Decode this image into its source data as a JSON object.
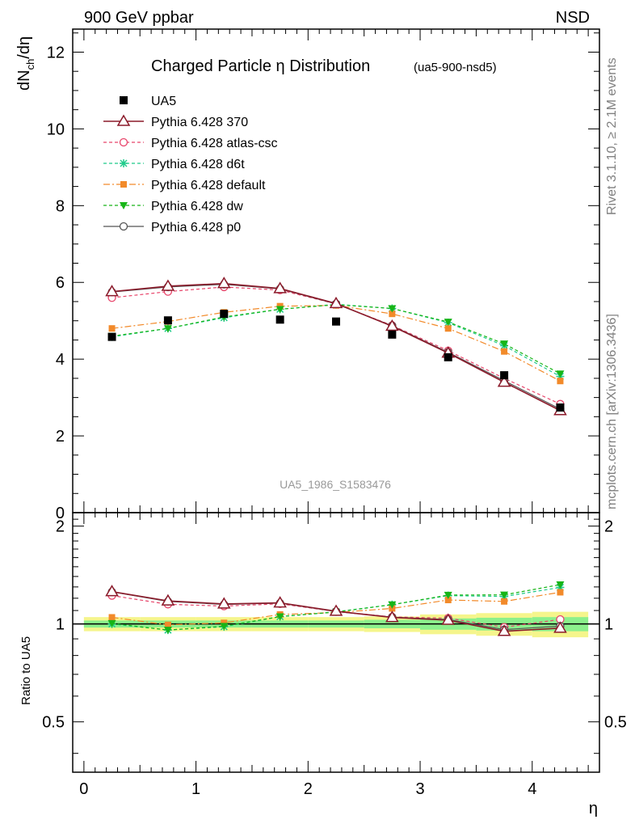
{
  "header": {
    "left": "900 GeV ppbar",
    "right": "NSD"
  },
  "side": {
    "rivet": "Rivet 3.1.10, ≥ 2.1M events",
    "mcplots": "mcplots.cern.ch [arXiv:1306.3436]"
  },
  "colors": {
    "data": "#000000",
    "p370": "#8b1a2a",
    "atlas": "#e8456b",
    "d6t": "#1ecb8a",
    "default": "#f28a2a",
    "dw": "#17b517",
    "p0": "#555555"
  },
  "chart_data": {
    "type": "line",
    "title": "Charged Particle η Distribution",
    "title_tag": "(ua5-900-nsd5)",
    "ylabel": "dN_ch/dη",
    "ratio_ylabel": "Ratio to UA5",
    "xlabel": "η",
    "watermark": "UA5_1986_S1583476",
    "xlim": [
      -0.1,
      4.6
    ],
    "ylim": [
      0,
      12.6
    ],
    "ratio_ylim": [
      0.35,
      2.2
    ],
    "xticks": [
      0,
      1,
      2,
      3,
      4
    ],
    "yticks": [
      0,
      2,
      4,
      6,
      8,
      10,
      12
    ],
    "ratio_yticks": [
      0.5,
      1,
      2
    ],
    "x": [
      0.25,
      0.75,
      1.25,
      1.75,
      2.25,
      2.75,
      3.25,
      3.75,
      4.25
    ],
    "data": {
      "name": "UA5",
      "values": [
        4.58,
        5.01,
        5.18,
        5.03,
        4.98,
        4.64,
        4.05,
        3.58,
        2.74
      ],
      "band_inner": [
        0.025,
        0.025,
        0.025,
        0.025,
        0.025,
        0.03,
        0.04,
        0.045,
        0.05
      ],
      "band_outer": [
        0.05,
        0.05,
        0.05,
        0.05,
        0.05,
        0.055,
        0.07,
        0.08,
        0.09
      ]
    },
    "series": [
      {
        "name": "Pythia 6.428 370",
        "key": "p370",
        "values": [
          5.76,
          5.9,
          5.97,
          5.84,
          5.45,
          4.86,
          4.16,
          3.4,
          2.66
        ]
      },
      {
        "name": "Pythia 6.428 atlas-csc",
        "key": "atlas",
        "values": [
          5.6,
          5.76,
          5.88,
          5.8,
          5.44,
          4.88,
          4.22,
          3.5,
          2.83
        ]
      },
      {
        "name": "Pythia 6.428 d6t",
        "key": "d6t",
        "values": [
          4.58,
          4.8,
          5.08,
          5.3,
          5.43,
          5.32,
          4.95,
          4.35,
          3.55
        ]
      },
      {
        "name": "Pythia 6.428 default",
        "key": "default",
        "values": [
          4.8,
          4.98,
          5.22,
          5.38,
          5.4,
          5.18,
          4.8,
          4.2,
          3.43
        ]
      },
      {
        "name": "Pythia 6.428 dw",
        "key": "dw",
        "values": [
          4.6,
          4.8,
          5.1,
          5.3,
          5.42,
          5.32,
          4.97,
          4.4,
          3.62
        ]
      },
      {
        "name": "Pythia 6.428 p0",
        "key": "p0",
        "values": [
          5.75,
          5.88,
          5.95,
          5.83,
          5.44,
          4.87,
          4.18,
          3.44,
          2.7
        ]
      }
    ]
  }
}
